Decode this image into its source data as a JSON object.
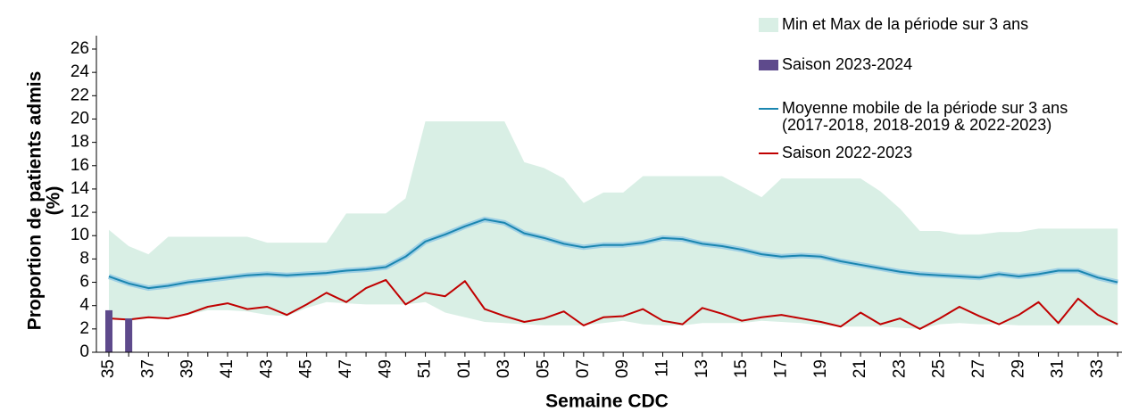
{
  "chart_data": {
    "type": "line",
    "xlabel": "Semaine CDC",
    "ylabel": [
      "Proportion de patients admis",
      "(%)"
    ],
    "categories": [
      "35",
      null,
      "37",
      null,
      "39",
      null,
      "41",
      null,
      "43",
      null,
      "45",
      null,
      "47",
      null,
      "49",
      null,
      "51",
      null,
      "01",
      null,
      "03",
      null,
      "05",
      null,
      "07",
      null,
      "09",
      null,
      "11",
      null,
      "13",
      null,
      "15",
      null,
      "17",
      null,
      "19",
      null,
      "21",
      null,
      "23",
      null,
      "25",
      null,
      "27",
      null,
      "29",
      null,
      "31",
      null,
      "33",
      null
    ],
    "ylim": [
      0,
      26
    ],
    "yticks": [
      0,
      2,
      4,
      6,
      8,
      10,
      12,
      14,
      16,
      18,
      20,
      22,
      24,
      26
    ],
    "legend": "top-right",
    "series": [
      {
        "name": "Min et Max de la période sur 3 ans",
        "type": "band",
        "color": "#d9efe5",
        "max": [
          10.5,
          9.1,
          8.4,
          9.9,
          9.9,
          9.9,
          9.9,
          9.9,
          9.4,
          9.4,
          9.4,
          9.4,
          11.9,
          11.9,
          11.9,
          13.2,
          19.8,
          19.8,
          19.8,
          19.8,
          19.8,
          16.3,
          15.8,
          14.9,
          12.8,
          13.7,
          13.7,
          15.1,
          15.1,
          15.1,
          15.1,
          15.1,
          14.2,
          13.3,
          14.9,
          14.9,
          14.9,
          14.9,
          14.9,
          13.8,
          12.3,
          10.4,
          10.4,
          10.1,
          10.1,
          10.3,
          10.3,
          10.6,
          10.6,
          10.6,
          10.6,
          10.6
        ],
        "min": [
          2.8,
          2.7,
          2.9,
          2.9,
          3.2,
          3.6,
          3.6,
          3.5,
          3.2,
          3.1,
          3.8,
          4.3,
          4.2,
          4.1,
          4.1,
          4.1,
          4.3,
          3.4,
          3.0,
          2.6,
          2.5,
          2.4,
          2.3,
          2.3,
          2.3,
          2.5,
          2.7,
          2.4,
          2.3,
          2.3,
          2.5,
          2.5,
          2.5,
          2.7,
          2.6,
          2.5,
          2.3,
          2.2,
          2.2,
          2.2,
          2.1,
          2.0,
          2.4,
          2.5,
          2.4,
          2.4,
          2.3,
          2.3,
          2.3,
          2.3,
          2.3,
          2.3
        ]
      },
      {
        "name": "Saison 2023-2024",
        "type": "bar",
        "color": "#5e4a8c",
        "values": [
          3.6,
          2.9,
          null,
          null,
          null,
          null,
          null,
          null,
          null,
          null,
          null,
          null,
          null,
          null,
          null,
          null,
          null,
          null,
          null,
          null,
          null,
          null,
          null,
          null,
          null,
          null,
          null,
          null,
          null,
          null,
          null,
          null,
          null,
          null,
          null,
          null,
          null,
          null,
          null,
          null,
          null,
          null,
          null,
          null,
          null,
          null,
          null,
          null,
          null,
          null,
          null,
          null
        ]
      },
      {
        "name": "Moyenne mobile de la période sur 3 ans\n(2017-2018, 2018-2019 & 2022-2023)",
        "type": "line",
        "color": "#1a86b0",
        "values": [
          6.5,
          5.9,
          5.5,
          5.7,
          6.0,
          6.2,
          6.4,
          6.6,
          6.7,
          6.6,
          6.7,
          6.8,
          7.0,
          7.1,
          7.3,
          8.2,
          9.5,
          10.1,
          10.8,
          11.4,
          11.1,
          10.2,
          9.8,
          9.3,
          9.0,
          9.2,
          9.2,
          9.4,
          9.8,
          9.7,
          9.3,
          9.1,
          8.8,
          8.4,
          8.2,
          8.3,
          8.2,
          7.8,
          7.5,
          7.2,
          6.9,
          6.7,
          6.6,
          6.5,
          6.4,
          6.7,
          6.5,
          6.7,
          7.0,
          7.0,
          6.4,
          6.0
        ]
      },
      {
        "name": "Saison 2022-2023",
        "type": "line",
        "color": "#c00000",
        "values": [
          2.9,
          2.8,
          3.0,
          2.9,
          3.3,
          3.9,
          4.2,
          3.7,
          3.9,
          3.2,
          4.1,
          5.1,
          4.3,
          5.5,
          6.2,
          4.1,
          5.1,
          4.8,
          6.1,
          3.7,
          3.1,
          2.6,
          2.9,
          3.5,
          2.3,
          3.0,
          3.1,
          3.7,
          2.7,
          2.4,
          3.8,
          3.3,
          2.7,
          3.0,
          3.2,
          2.9,
          2.6,
          2.2,
          3.4,
          2.4,
          2.9,
          2.0,
          2.9,
          3.9,
          3.1,
          2.4,
          3.2,
          4.3,
          2.5,
          4.6,
          3.2,
          2.4
        ]
      }
    ]
  }
}
